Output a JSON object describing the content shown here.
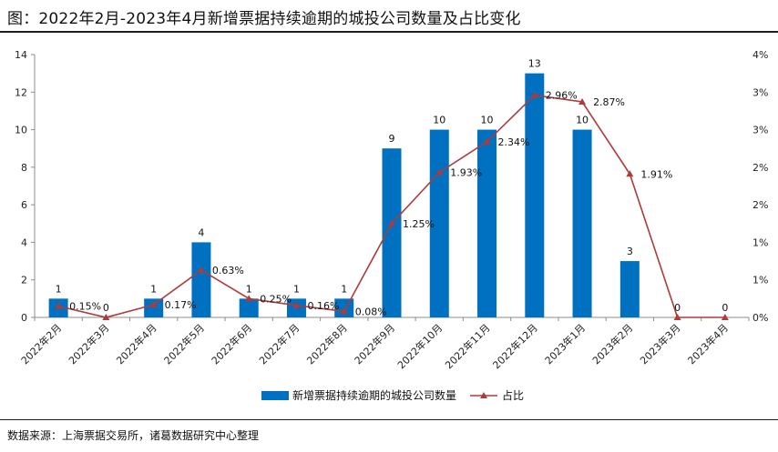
{
  "title": "图：2022年2月-2023年4月新增票据持续逾期的城投公司数量及占比变化",
  "source": "数据来源：上海票据交易所，诸葛数据研究中心整理",
  "chart_data": {
    "type": "bar",
    "categories": [
      "2022年2月",
      "2022年3月",
      "2022年4月",
      "2022年5月",
      "2022年6月",
      "2022年7月",
      "2022年8月",
      "2022年9月",
      "2022年10月",
      "2022年11月",
      "2022年12月",
      "2023年1月",
      "2023年2月",
      "2023年3月",
      "2023年4月"
    ],
    "series": [
      {
        "name": "新增票据持续逾期的城投公司数量",
        "type": "bar",
        "axis": "left",
        "color": "#0070c0",
        "values": [
          1,
          0,
          1,
          4,
          1,
          1,
          1,
          9,
          10,
          10,
          13,
          10,
          3,
          0,
          0
        ],
        "labels": [
          "1",
          "0",
          "1",
          "4",
          "1",
          "1",
          "1",
          "9",
          "10",
          "10",
          "13",
          "10",
          "3",
          "0",
          "0"
        ]
      },
      {
        "name": "占比",
        "type": "line",
        "axis": "right",
        "color": "#b03a3a",
        "values": [
          0.15,
          0,
          0.17,
          0.63,
          0.25,
          0.16,
          0.08,
          1.25,
          1.93,
          2.34,
          2.96,
          2.87,
          1.91,
          0,
          0
        ],
        "labels": [
          "0.15%",
          "",
          "0.17%",
          "0.63%",
          "0.25%",
          "0.16%",
          "0.08%",
          "1.25%",
          "1.93%",
          "2.34%",
          "2.96%",
          "2.87%",
          "1.91%",
          "",
          ""
        ]
      }
    ],
    "y_left": {
      "ylim": [
        0,
        14
      ],
      "ticks": [
        "0",
        "2",
        "4",
        "6",
        "8",
        "10",
        "12",
        "14"
      ]
    },
    "y_right": {
      "ylim": [
        0,
        3.5
      ],
      "ticks": [
        "0%",
        "1%",
        "1%",
        "2%",
        "2%",
        "3%",
        "3%",
        "4%"
      ]
    },
    "grid": false,
    "legend": "bottom"
  }
}
